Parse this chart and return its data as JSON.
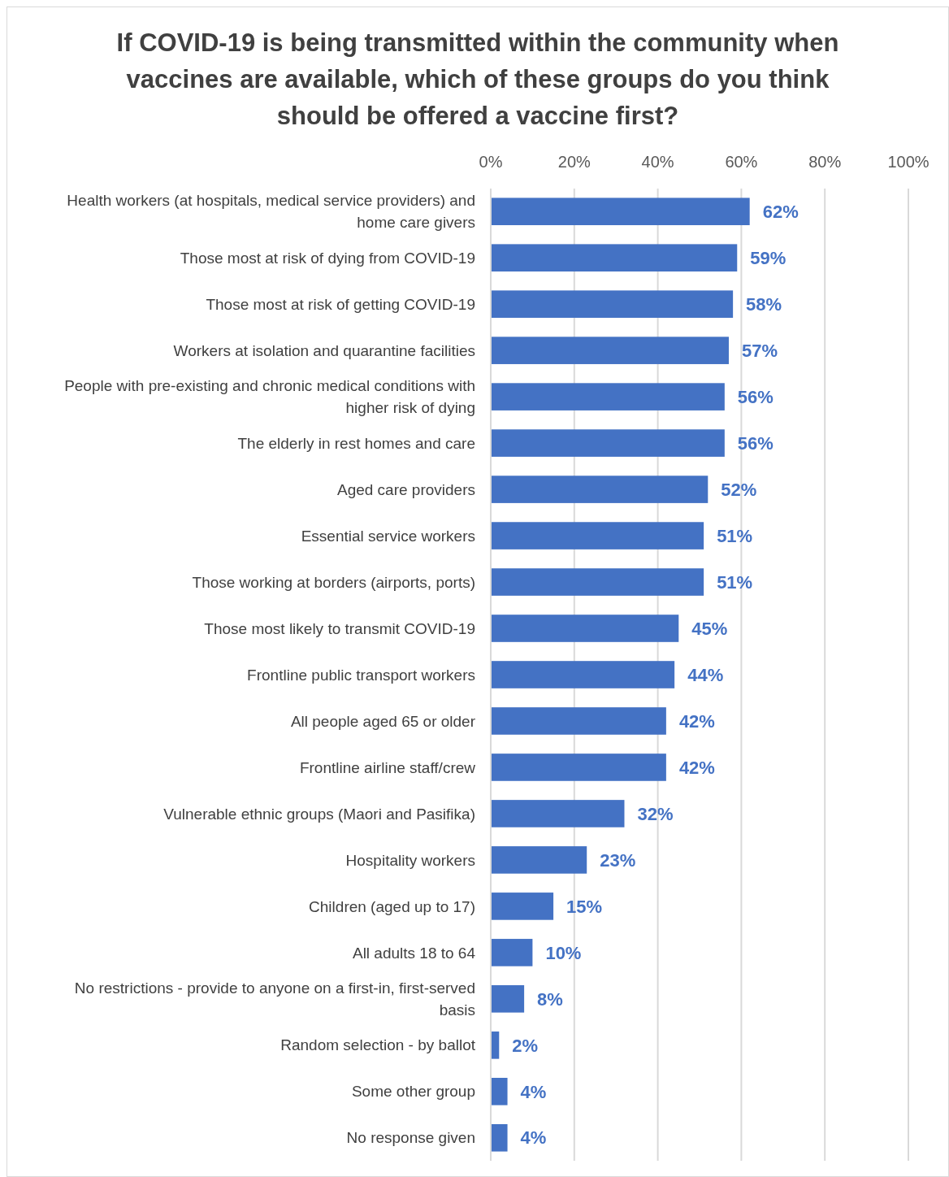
{
  "chart_data": {
    "type": "bar",
    "orientation": "horizontal",
    "title": "If COVID-19 is being transmitted within the community when vaccines are available, which of these groups do you think should be offered a vaccine first?",
    "categories": [
      "Health workers (at hospitals, medical service providers) and home care givers",
      "Those most at risk of dying from COVID-19",
      "Those most at risk of getting COVID-19",
      "Workers at isolation and quarantine facilities",
      "People with pre-existing and chronic medical conditions with higher risk of dying",
      "The elderly in rest homes and care",
      "Aged care providers",
      "Essential service workers",
      "Those working at borders (airports, ports)",
      "Those most likely to transmit COVID-19",
      "Frontline public transport workers",
      "All people aged 65 or older",
      "Frontline airline staff/crew",
      "Vulnerable ethnic groups (Maori and Pasifika)",
      "Hospitality workers",
      "Children (aged up to 17)",
      "All adults 18 to 64",
      "No restrictions - provide to anyone on a first-in, first-served basis",
      "Random selection - by ballot",
      "Some other group",
      "No response given"
    ],
    "values": [
      62,
      59,
      58,
      57,
      56,
      56,
      52,
      51,
      51,
      45,
      44,
      42,
      42,
      32,
      23,
      15,
      10,
      8,
      2,
      4,
      4
    ],
    "value_labels": [
      "62%",
      "59%",
      "58%",
      "57%",
      "56%",
      "56%",
      "52%",
      "51%",
      "51%",
      "45%",
      "44%",
      "42%",
      "42%",
      "32%",
      "23%",
      "15%",
      "10%",
      "8%",
      "2%",
      "4%",
      "4%"
    ],
    "color": "#4472c4",
    "xlim": [
      0,
      100
    ],
    "xticks": [
      {
        "value": 0,
        "label": "0%"
      },
      {
        "value": 20,
        "label": "20%"
      },
      {
        "value": 40,
        "label": "40%"
      },
      {
        "value": 60,
        "label": "60%"
      },
      {
        "value": 80,
        "label": "80%"
      },
      {
        "value": 100,
        "label": "100%"
      }
    ],
    "grid": "x"
  }
}
